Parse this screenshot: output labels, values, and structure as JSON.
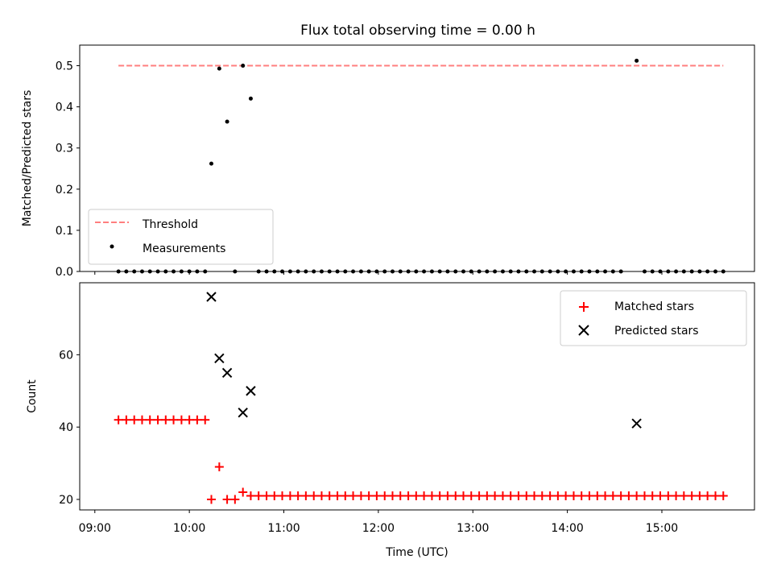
{
  "figure": {
    "title": "Flux total observing time = 0.00 h",
    "xlabel": "Time (UTC)"
  },
  "colors": {
    "threshold": "#ff7f7f",
    "measurement": "#000000",
    "matched": "#ff0000",
    "predicted": "#000000"
  },
  "chart_data": [
    {
      "type": "scatter",
      "ylabel": "Matched/Predicted stars",
      "ylim": [
        0,
        0.55
      ],
      "xlim_hours": [
        8.84,
        15.98
      ],
      "yticks": [
        0.0,
        0.1,
        0.2,
        0.3,
        0.4,
        0.5
      ],
      "legend": {
        "position": "lower-left",
        "entries": [
          "Threshold",
          "Measurements"
        ]
      },
      "series": [
        {
          "name": "Threshold",
          "kind": "dashed-line",
          "x_hours": [
            9.25,
            15.65
          ],
          "y": [
            0.5,
            0.5
          ]
        },
        {
          "name": "Measurements",
          "kind": "dots",
          "points": [
            [
              9.25,
              0
            ],
            [
              9.333,
              0
            ],
            [
              9.417,
              0
            ],
            [
              9.5,
              0
            ],
            [
              9.583,
              0
            ],
            [
              9.667,
              0
            ],
            [
              9.75,
              0
            ],
            [
              9.833,
              0
            ],
            [
              9.917,
              0
            ],
            [
              10.0,
              0
            ],
            [
              10.083,
              0
            ],
            [
              10.167,
              0
            ],
            [
              10.233,
              0.262
            ],
            [
              10.317,
              0.493
            ],
            [
              10.4,
              0.364
            ],
            [
              10.483,
              0
            ],
            [
              10.567,
              0.5
            ],
            [
              10.65,
              0.42
            ],
            [
              10.733,
              0
            ],
            [
              10.817,
              0
            ],
            [
              10.9,
              0
            ],
            [
              10.983,
              0
            ],
            [
              11.067,
              0
            ],
            [
              11.15,
              0
            ],
            [
              11.233,
              0
            ],
            [
              11.317,
              0
            ],
            [
              11.4,
              0
            ],
            [
              11.483,
              0
            ],
            [
              11.567,
              0
            ],
            [
              11.65,
              0
            ],
            [
              11.733,
              0
            ],
            [
              11.817,
              0
            ],
            [
              11.9,
              0
            ],
            [
              11.983,
              0
            ],
            [
              12.067,
              0
            ],
            [
              12.15,
              0
            ],
            [
              12.233,
              0
            ],
            [
              12.317,
              0
            ],
            [
              12.4,
              0
            ],
            [
              12.483,
              0
            ],
            [
              12.567,
              0
            ],
            [
              12.65,
              0
            ],
            [
              12.733,
              0
            ],
            [
              12.817,
              0
            ],
            [
              12.9,
              0
            ],
            [
              12.983,
              0
            ],
            [
              13.067,
              0
            ],
            [
              13.15,
              0
            ],
            [
              13.233,
              0
            ],
            [
              13.317,
              0
            ],
            [
              13.4,
              0
            ],
            [
              13.483,
              0
            ],
            [
              13.567,
              0
            ],
            [
              13.65,
              0
            ],
            [
              13.733,
              0
            ],
            [
              13.817,
              0
            ],
            [
              13.9,
              0
            ],
            [
              13.983,
              0
            ],
            [
              14.067,
              0
            ],
            [
              14.15,
              0
            ],
            [
              14.233,
              0
            ],
            [
              14.317,
              0
            ],
            [
              14.4,
              0
            ],
            [
              14.483,
              0
            ],
            [
              14.567,
              0
            ],
            [
              14.733,
              0.512
            ],
            [
              14.817,
              0
            ],
            [
              14.9,
              0
            ],
            [
              14.983,
              0
            ],
            [
              15.067,
              0
            ],
            [
              15.15,
              0
            ],
            [
              15.233,
              0
            ],
            [
              15.317,
              0
            ],
            [
              15.4,
              0
            ],
            [
              15.483,
              0
            ],
            [
              15.567,
              0
            ],
            [
              15.65,
              0
            ]
          ]
        }
      ]
    },
    {
      "type": "scatter",
      "ylabel": "Count",
      "xlabel": "Time (UTC)",
      "ylim": [
        17.1,
        79.9
      ],
      "xlim_hours": [
        8.84,
        15.98
      ],
      "yticks": [
        20,
        40,
        60
      ],
      "xticks": [
        "09:00",
        "10:00",
        "11:00",
        "12:00",
        "13:00",
        "14:00",
        "15:00"
      ],
      "xtick_hours": [
        9,
        10,
        11,
        12,
        13,
        14,
        15
      ],
      "legend": {
        "position": "upper-right",
        "entries": [
          "Matched stars",
          "Predicted stars"
        ]
      },
      "series": [
        {
          "name": "Matched stars",
          "kind": "plus",
          "points": [
            [
              9.25,
              42
            ],
            [
              9.333,
              42
            ],
            [
              9.417,
              42
            ],
            [
              9.5,
              42
            ],
            [
              9.583,
              42
            ],
            [
              9.667,
              42
            ],
            [
              9.75,
              42
            ],
            [
              9.833,
              42
            ],
            [
              9.917,
              42
            ],
            [
              10.0,
              42
            ],
            [
              10.083,
              42
            ],
            [
              10.167,
              42
            ],
            [
              10.233,
              20
            ],
            [
              10.317,
              29
            ],
            [
              10.4,
              20
            ],
            [
              10.483,
              20
            ],
            [
              10.567,
              22
            ],
            [
              10.65,
              21
            ],
            [
              10.733,
              21
            ],
            [
              10.817,
              21
            ],
            [
              10.9,
              21
            ],
            [
              10.983,
              21
            ],
            [
              11.067,
              21
            ],
            [
              11.15,
              21
            ],
            [
              11.233,
              21
            ],
            [
              11.317,
              21
            ],
            [
              11.4,
              21
            ],
            [
              11.483,
              21
            ],
            [
              11.567,
              21
            ],
            [
              11.65,
              21
            ],
            [
              11.733,
              21
            ],
            [
              11.817,
              21
            ],
            [
              11.9,
              21
            ],
            [
              11.983,
              21
            ],
            [
              12.067,
              21
            ],
            [
              12.15,
              21
            ],
            [
              12.233,
              21
            ],
            [
              12.317,
              21
            ],
            [
              12.4,
              21
            ],
            [
              12.483,
              21
            ],
            [
              12.567,
              21
            ],
            [
              12.65,
              21
            ],
            [
              12.733,
              21
            ],
            [
              12.817,
              21
            ],
            [
              12.9,
              21
            ],
            [
              12.983,
              21
            ],
            [
              13.067,
              21
            ],
            [
              13.15,
              21
            ],
            [
              13.233,
              21
            ],
            [
              13.317,
              21
            ],
            [
              13.4,
              21
            ],
            [
              13.483,
              21
            ],
            [
              13.567,
              21
            ],
            [
              13.65,
              21
            ],
            [
              13.733,
              21
            ],
            [
              13.817,
              21
            ],
            [
              13.9,
              21
            ],
            [
              13.983,
              21
            ],
            [
              14.067,
              21
            ],
            [
              14.15,
              21
            ],
            [
              14.233,
              21
            ],
            [
              14.317,
              21
            ],
            [
              14.4,
              21
            ],
            [
              14.483,
              21
            ],
            [
              14.567,
              21
            ],
            [
              14.65,
              21
            ],
            [
              14.733,
              21
            ],
            [
              14.817,
              21
            ],
            [
              14.9,
              21
            ],
            [
              14.983,
              21
            ],
            [
              15.067,
              21
            ],
            [
              15.15,
              21
            ],
            [
              15.233,
              21
            ],
            [
              15.317,
              21
            ],
            [
              15.4,
              21
            ],
            [
              15.483,
              21
            ],
            [
              15.567,
              21
            ],
            [
              15.65,
              21
            ]
          ]
        },
        {
          "name": "Predicted stars",
          "kind": "x",
          "points": [
            [
              10.233,
              76
            ],
            [
              10.317,
              59
            ],
            [
              10.4,
              55
            ],
            [
              10.567,
              44
            ],
            [
              10.65,
              50
            ],
            [
              14.733,
              41
            ]
          ]
        }
      ]
    }
  ]
}
